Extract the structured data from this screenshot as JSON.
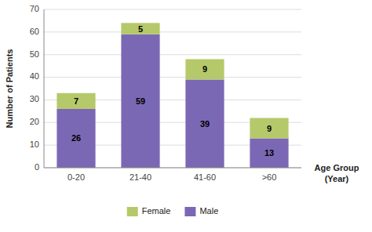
{
  "chart_data": {
    "type": "bar",
    "stacked": true,
    "categories": [
      "0-20",
      "21-40",
      "41-60",
      ">60"
    ],
    "series": [
      {
        "name": "Male",
        "color": "#7b68b5",
        "values": [
          26,
          59,
          39,
          13
        ]
      },
      {
        "name": "Female",
        "color": "#b5c96a",
        "values": [
          7,
          5,
          9,
          9
        ]
      }
    ],
    "ylabel": "Number of Patients",
    "xlabel": "Age Group\n(Year)",
    "ylim": [
      0,
      70
    ],
    "yticks": [
      0,
      10,
      20,
      30,
      40,
      50,
      60,
      70
    ],
    "grid": true,
    "data_labels": true,
    "legend": "bottom"
  }
}
